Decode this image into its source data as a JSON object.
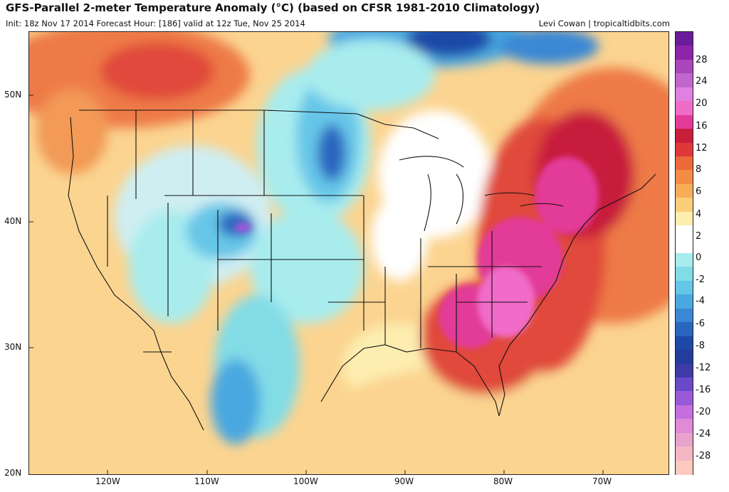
{
  "title": "GFS-Parallel 2-meter Temperature Anomaly (°C) (based on CFSR 1981-2010 Climatology)",
  "subtitle_left": "Init: 18z Nov 17 2014   Forecast Hour: [186]   valid at 12z Tue, Nov 25 2014",
  "subtitle_right": "Levi Cowan | tropicaltidbits.com",
  "lat_labels": [
    "50N",
    "40N",
    "30N",
    "20N"
  ],
  "lon_labels": [
    "120W",
    "110W",
    "100W",
    "90W",
    "80W",
    "70W"
  ],
  "colorbar": {
    "labels": [
      "28",
      "24",
      "20",
      "16",
      "12",
      "8",
      "6",
      "4",
      "2",
      "0",
      "-2",
      "-4",
      "-6",
      "-8",
      "-12",
      "-16",
      "-20",
      "-24",
      "-28"
    ],
    "colors": [
      "#6a1b9a",
      "#8e24aa",
      "#ab47bc",
      "#c066cc",
      "#e080e0",
      "#f06cc8",
      "#e23a98",
      "#c81e3c",
      "#e0383a",
      "#ec6a3a",
      "#f48c44",
      "#f7ad58",
      "#fbcf7a",
      "#fdeeb0",
      "#ffffff",
      "#ffffff",
      "#a8ecee",
      "#82dce6",
      "#66c6e8",
      "#4aa8e0",
      "#3a88d4",
      "#2a66c0",
      "#1e48a8",
      "#243c9c",
      "#3e3aa8",
      "#6a4ac8",
      "#9a5ad8",
      "#c46ee0",
      "#e08ad8",
      "#e8a2cc",
      "#f4b8c4",
      "#fccac0"
    ]
  }
}
